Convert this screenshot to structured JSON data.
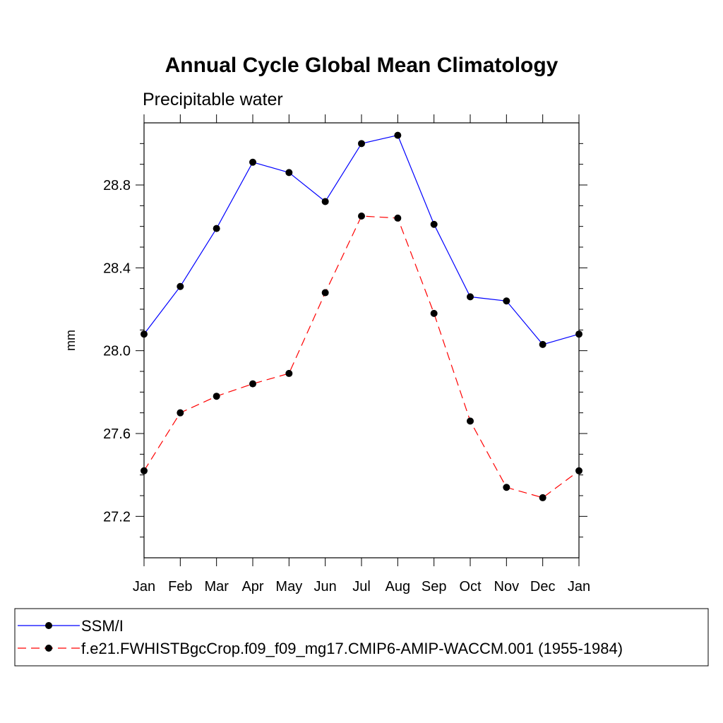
{
  "chart_data": {
    "type": "line",
    "title": "Annual Cycle Global Mean Climatology",
    "subtitle": "Precipitable water",
    "xlabel": "",
    "ylabel": "mm",
    "categories": [
      "Jan",
      "Feb",
      "Mar",
      "Apr",
      "May",
      "Jun",
      "Jul",
      "Aug",
      "Sep",
      "Oct",
      "Nov",
      "Dec",
      "Jan"
    ],
    "ylim": [
      27.0,
      29.1
    ],
    "yticks": [
      27.2,
      27.6,
      28.0,
      28.4,
      28.8
    ],
    "ytick_labels": [
      "27.2",
      "27.6",
      "28.0",
      "28.4",
      "28.8"
    ],
    "series": [
      {
        "name": "SSM/I",
        "color": "#0000ff",
        "dash": "solid",
        "values": [
          28.08,
          28.31,
          28.59,
          28.91,
          28.86,
          28.72,
          29.0,
          29.04,
          28.61,
          28.26,
          28.24,
          28.03,
          28.08
        ]
      },
      {
        "name": "f.e21.FWHISTBgcCrop.f09_f09_mg17.CMIP6-AMIP-WACCM.001 (1955-1984)",
        "color": "#ff0000",
        "dash": "dashed",
        "values": [
          27.42,
          27.7,
          27.78,
          27.84,
          27.89,
          28.28,
          28.65,
          28.64,
          28.18,
          27.66,
          27.34,
          27.29,
          27.42
        ]
      }
    ]
  }
}
